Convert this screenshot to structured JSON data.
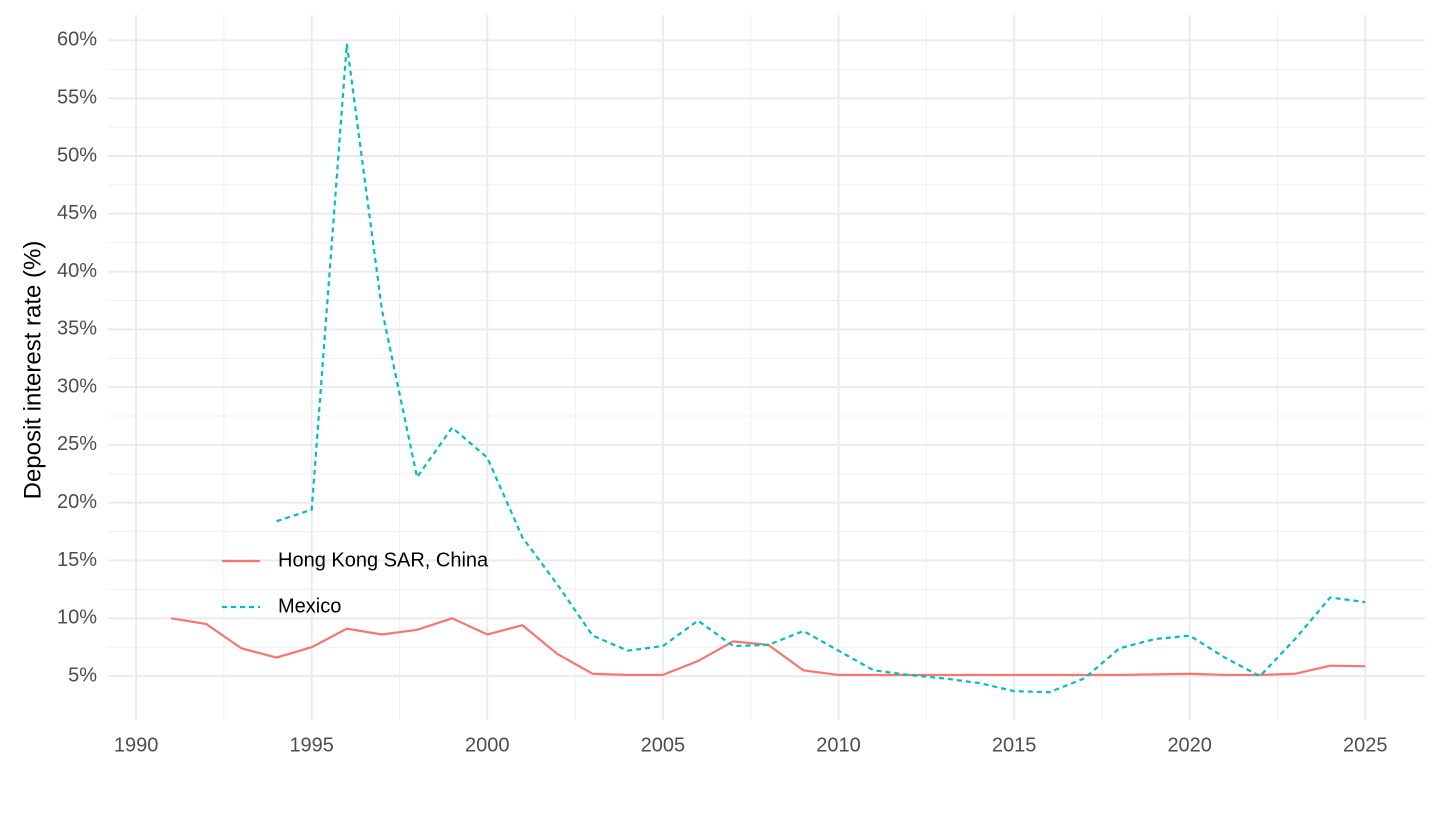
{
  "chart_data": {
    "type": "line",
    "y_label": "Deposit interest rate (%)",
    "xlim": [
      1989.2,
      2026.7
    ],
    "xticks": [
      1990,
      1995,
      2000,
      2005,
      2010,
      2015,
      2020,
      2025
    ],
    "ylim": [
      1.2,
      62.2
    ],
    "yticks": [
      {
        "value": 5,
        "label": "5%"
      },
      {
        "value": 10,
        "label": "10%"
      },
      {
        "value": 15,
        "label": "15%"
      },
      {
        "value": 20,
        "label": "20%"
      },
      {
        "value": 25,
        "label": "25%"
      },
      {
        "value": 30,
        "label": "30%"
      },
      {
        "value": 35,
        "label": "35%"
      },
      {
        "value": 40,
        "label": "40%"
      },
      {
        "value": 45,
        "label": "45%"
      },
      {
        "value": 50,
        "label": "50%"
      },
      {
        "value": 55,
        "label": "55%"
      },
      {
        "value": 60,
        "label": "60%"
      }
    ],
    "grid": true,
    "minor_grid": true,
    "legend": "left",
    "series": [
      {
        "name": "Hong Kong SAR, China",
        "color": "#f8766d",
        "dash": false,
        "x": [
          1991,
          1992,
          1993,
          1994,
          1995,
          1996,
          1997,
          1998,
          1999,
          2000,
          2001,
          2002,
          2003,
          2004,
          2005,
          2006,
          2007,
          2008,
          2009,
          2010,
          2011,
          2012,
          2013,
          2014,
          2015,
          2016,
          2017,
          2018,
          2019,
          2020,
          2021,
          2022,
          2023,
          2024,
          2025
        ],
        "values": [
          10.0,
          9.5,
          7.4,
          6.6,
          7.5,
          9.1,
          8.6,
          9.0,
          10.0,
          8.6,
          9.4,
          6.9,
          5.2,
          5.1,
          5.1,
          6.3,
          8.0,
          7.7,
          5.5,
          5.1,
          5.1,
          5.1,
          5.1,
          5.1,
          5.1,
          5.1,
          5.1,
          5.1,
          5.15,
          5.2,
          5.1,
          5.1,
          5.2,
          5.9,
          5.85
        ]
      },
      {
        "name": "Mexico",
        "color": "#00bfc4",
        "dash": true,
        "x": [
          1994,
          1995,
          1996,
          1997,
          1998,
          1999,
          2000,
          2001,
          2002,
          2003,
          2004,
          2005,
          2006,
          2007,
          2008,
          2009,
          2010,
          2011,
          2012,
          2013,
          2014,
          2015,
          2016,
          2017,
          2018,
          2019,
          2020,
          2021,
          2022,
          2023,
          2024,
          2025
        ],
        "values": [
          18.4,
          19.4,
          59.7,
          36.7,
          22.2,
          26.5,
          23.9,
          17.0,
          12.9,
          8.5,
          7.2,
          7.6,
          9.8,
          7.6,
          7.7,
          8.9,
          7.2,
          5.5,
          5.1,
          4.8,
          4.4,
          3.7,
          3.6,
          4.8,
          7.4,
          8.2,
          8.5,
          6.6,
          5.0,
          8.2,
          11.8,
          11.4
        ]
      }
    ]
  }
}
